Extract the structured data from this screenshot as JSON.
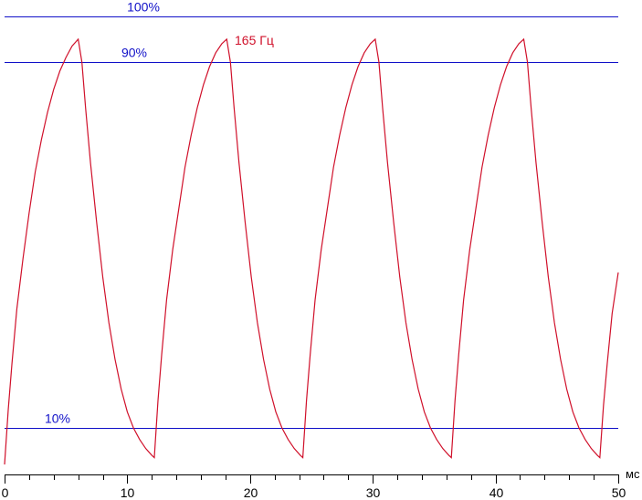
{
  "chart_data": {
    "type": "line",
    "xlabel_unit": "мс",
    "xlim": [
      0,
      50
    ],
    "ylim": [
      0,
      110
    ],
    "grid": false,
    "x_major_ticks": [
      0,
      10,
      20,
      30,
      40,
      50
    ],
    "x_minor_step": 2,
    "reference_lines": [
      {
        "label": "100%",
        "y": 100
      },
      {
        "label": "90%",
        "y": 90
      },
      {
        "label": "10%",
        "y": 10
      }
    ],
    "series": [
      {
        "name": "165 Гц",
        "color": "#d0102a",
        "points": [
          [
            0.0,
            2
          ],
          [
            0.3,
            14
          ],
          [
            0.6,
            24
          ],
          [
            1.0,
            36
          ],
          [
            1.5,
            47
          ],
          [
            2.0,
            57
          ],
          [
            2.5,
            66
          ],
          [
            3.0,
            73
          ],
          [
            3.5,
            79
          ],
          [
            4.0,
            84
          ],
          [
            4.5,
            88
          ],
          [
            5.0,
            91
          ],
          [
            5.5,
            93.5
          ],
          [
            6.0,
            95
          ],
          [
            6.3,
            90
          ],
          [
            6.6,
            80
          ],
          [
            7.0,
            68
          ],
          [
            7.5,
            55
          ],
          [
            8.0,
            43
          ],
          [
            8.5,
            33
          ],
          [
            9.0,
            25
          ],
          [
            9.5,
            18.5
          ],
          [
            10.0,
            13.5
          ],
          [
            10.5,
            10
          ],
          [
            11.0,
            7.5
          ],
          [
            11.5,
            5.5
          ],
          [
            12.0,
            4
          ],
          [
            12.2,
            3.5
          ],
          [
            12.5,
            16
          ],
          [
            12.8,
            26
          ],
          [
            13.2,
            38
          ],
          [
            13.7,
            49
          ],
          [
            14.2,
            58
          ],
          [
            14.7,
            67
          ],
          [
            15.2,
            74
          ],
          [
            15.7,
            80
          ],
          [
            16.2,
            85
          ],
          [
            16.7,
            89
          ],
          [
            17.2,
            92
          ],
          [
            17.7,
            94
          ],
          [
            18.1,
            95
          ],
          [
            18.4,
            90
          ],
          [
            18.7,
            80
          ],
          [
            19.1,
            68
          ],
          [
            19.6,
            55
          ],
          [
            20.1,
            43
          ],
          [
            20.6,
            33
          ],
          [
            21.1,
            25
          ],
          [
            21.6,
            18.5
          ],
          [
            22.1,
            13.5
          ],
          [
            22.6,
            10
          ],
          [
            23.1,
            7.5
          ],
          [
            23.6,
            5.5
          ],
          [
            24.1,
            4
          ],
          [
            24.3,
            3.5
          ],
          [
            24.6,
            16
          ],
          [
            24.9,
            26
          ],
          [
            25.3,
            38
          ],
          [
            25.8,
            49
          ],
          [
            26.3,
            58
          ],
          [
            26.8,
            67
          ],
          [
            27.3,
            74
          ],
          [
            27.8,
            80
          ],
          [
            28.3,
            85
          ],
          [
            28.8,
            89
          ],
          [
            29.3,
            92
          ],
          [
            29.8,
            94
          ],
          [
            30.2,
            95
          ],
          [
            30.5,
            90
          ],
          [
            30.8,
            80
          ],
          [
            31.2,
            68
          ],
          [
            31.7,
            55
          ],
          [
            32.2,
            43
          ],
          [
            32.7,
            33
          ],
          [
            33.2,
            25
          ],
          [
            33.7,
            18.5
          ],
          [
            34.2,
            13.5
          ],
          [
            34.7,
            10
          ],
          [
            35.2,
            7.5
          ],
          [
            35.7,
            5.5
          ],
          [
            36.2,
            4
          ],
          [
            36.4,
            3.5
          ],
          [
            36.7,
            16
          ],
          [
            37.0,
            26
          ],
          [
            37.4,
            38
          ],
          [
            37.9,
            49
          ],
          [
            38.4,
            58
          ],
          [
            38.9,
            67
          ],
          [
            39.4,
            74
          ],
          [
            39.9,
            80
          ],
          [
            40.4,
            85
          ],
          [
            40.9,
            89
          ],
          [
            41.4,
            92
          ],
          [
            41.9,
            94
          ],
          [
            42.3,
            95
          ],
          [
            42.6,
            90
          ],
          [
            42.9,
            80
          ],
          [
            43.3,
            68
          ],
          [
            43.8,
            55
          ],
          [
            44.3,
            43
          ],
          [
            44.8,
            33
          ],
          [
            45.3,
            25
          ],
          [
            45.8,
            18.5
          ],
          [
            46.3,
            13.5
          ],
          [
            46.8,
            10
          ],
          [
            47.3,
            7.5
          ],
          [
            47.8,
            5.5
          ],
          [
            48.3,
            4
          ],
          [
            48.5,
            3.5
          ],
          [
            48.8,
            15
          ],
          [
            49.1,
            24
          ],
          [
            49.5,
            35
          ],
          [
            50.0,
            44
          ]
        ]
      }
    ]
  }
}
